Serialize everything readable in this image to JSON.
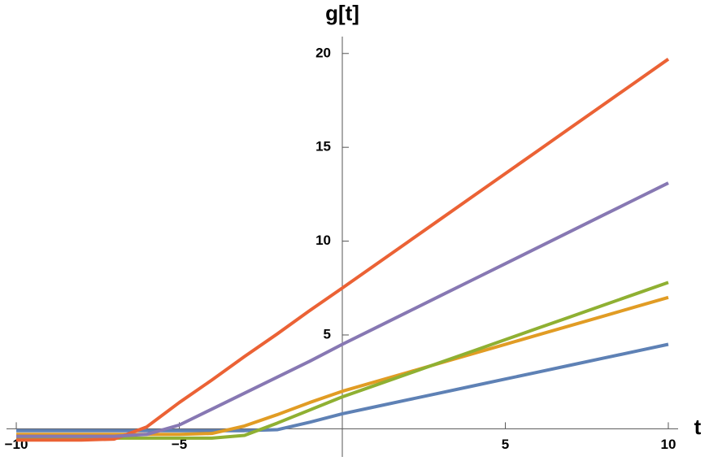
{
  "chart_data": {
    "type": "line",
    "x_label": "t",
    "y_label": "g[t]",
    "x": [
      -10,
      -9,
      -8,
      -7,
      -6,
      -5,
      -4,
      -3,
      -2,
      -1,
      0,
      1,
      2,
      3,
      4,
      5,
      6,
      7,
      8,
      9,
      10
    ],
    "series": [
      {
        "color": "#5e81b5",
        "values": [
          -0.1,
          -0.1,
          -0.1,
          -0.1,
          -0.1,
          -0.1,
          -0.1,
          -0.1,
          -0.05,
          0.35,
          0.8,
          1.17,
          1.54,
          1.91,
          2.28,
          2.65,
          3.02,
          3.39,
          3.76,
          4.13,
          4.5
        ]
      },
      {
        "color": "#e19c24",
        "values": [
          -0.3,
          -0.3,
          -0.3,
          -0.3,
          -0.3,
          -0.3,
          -0.25,
          0.15,
          0.75,
          1.4,
          2.0,
          2.5,
          3.0,
          3.5,
          4.0,
          4.5,
          5.0,
          5.5,
          6.0,
          6.5,
          7.0
        ]
      },
      {
        "color": "#8fb032",
        "values": [
          -0.5,
          -0.5,
          -0.5,
          -0.5,
          -0.5,
          -0.5,
          -0.5,
          -0.35,
          0.3,
          1.0,
          1.7,
          2.31,
          2.92,
          3.53,
          4.14,
          4.75,
          5.36,
          5.97,
          6.58,
          7.19,
          7.8
        ]
      },
      {
        "color": "#eb6235",
        "values": [
          -0.6,
          -0.6,
          -0.6,
          -0.55,
          0.1,
          1.4,
          2.6,
          3.85,
          5.05,
          6.3,
          7.5,
          8.72,
          9.94,
          11.16,
          12.38,
          13.6,
          14.82,
          16.04,
          17.26,
          18.48,
          19.7
        ]
      },
      {
        "color": "#8778b3",
        "values": [
          -0.4,
          -0.4,
          -0.4,
          -0.4,
          -0.3,
          0.2,
          1.05,
          1.9,
          2.75,
          3.6,
          4.5,
          5.36,
          6.22,
          7.08,
          7.94,
          8.8,
          9.66,
          10.52,
          11.38,
          12.24,
          13.1
        ]
      }
    ],
    "xlim": [
      -10.3,
      10.3
    ],
    "ylim": [
      -1.5,
      20.9
    ],
    "xticks": [
      {
        "value": -10,
        "label": "−10"
      },
      {
        "value": -5,
        "label": "−5"
      },
      5,
      10
    ],
    "yticks": [
      5,
      10,
      15,
      20
    ]
  }
}
